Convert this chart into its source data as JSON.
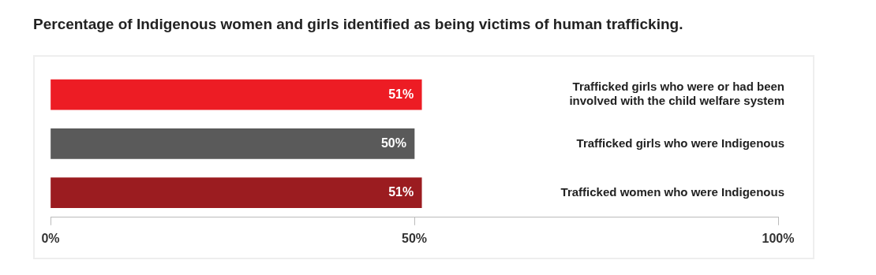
{
  "chart_data": {
    "type": "bar",
    "orientation": "horizontal",
    "title": "Percentage of Indigenous women and girls identified as being victims of human trafficking.",
    "categories": [
      "Trafficked girls who were or had been involved with the child welfare system",
      "Trafficked girls who were Indigenous",
      "Trafficked women who were Indigenous"
    ],
    "values": [
      51,
      50,
      51
    ],
    "colors": [
      "#ed1c24",
      "#5a5a5a",
      "#9b1c20"
    ],
    "value_labels": [
      "51%",
      "50%",
      "51%"
    ],
    "xlim": [
      0,
      100
    ],
    "xticks": [
      {
        "value": 0,
        "label": "0%"
      },
      {
        "value": 50,
        "label": "50%"
      },
      {
        "value": 100,
        "label": "100%"
      }
    ],
    "grid": false,
    "legend": false
  }
}
